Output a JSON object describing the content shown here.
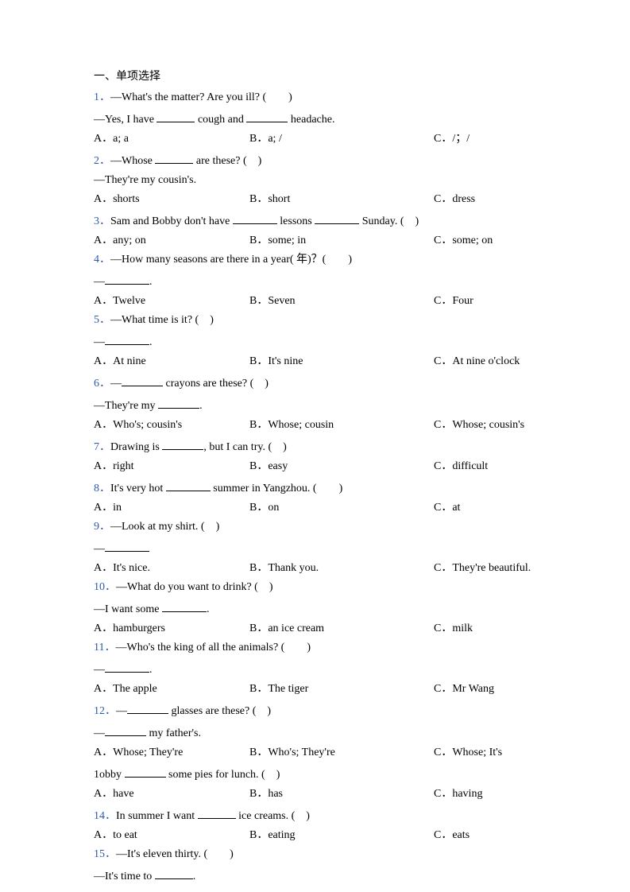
{
  "section_title": "一、单项选择",
  "colors": {
    "qnum": "#2e5aac",
    "text": "#000000",
    "bg": "#ffffff"
  },
  "questions": [
    {
      "num": "1．",
      "lines": [
        [
          {
            "t": "—What's the matter? Are you ill? (　　)"
          }
        ],
        [
          {
            "t": "—Yes, I have "
          },
          {
            "blank": 48
          },
          {
            "t": " cough and "
          },
          {
            "blank": 52
          },
          {
            "t": " headache."
          }
        ]
      ],
      "opts": [
        "A．a; a",
        "B．a; /",
        "C．/；/"
      ]
    },
    {
      "num": "2．",
      "lines": [
        [
          {
            "t": "—Whose "
          },
          {
            "blank": 48
          },
          {
            "t": " are these? (　)"
          }
        ],
        [
          {
            "t": "—They're my cousin's."
          }
        ]
      ],
      "opts": [
        "A．shorts",
        "B．short",
        "C．dress"
      ]
    },
    {
      "num": "3．",
      "lines": [
        [
          {
            "t": "Sam and Bobby don't have "
          },
          {
            "blank": 56
          },
          {
            "t": " lessons "
          },
          {
            "blank": 56
          },
          {
            "t": " Sunday. (　)"
          }
        ]
      ],
      "opts": [
        "A．any; on",
        "B．some; in",
        "C．some; on"
      ]
    },
    {
      "num": "4．",
      "lines": [
        [
          {
            "t": "—How many seasons are there in a year( 年)？(　　)"
          }
        ],
        [
          {
            "t": "—"
          },
          {
            "blank": 56
          },
          {
            "t": "."
          }
        ]
      ],
      "opts": [
        "A．Twelve",
        "B．Seven",
        "C．Four"
      ]
    },
    {
      "num": "5．",
      "lines": [
        [
          {
            "t": "—What time is it? (　)"
          }
        ],
        [
          {
            "t": "—"
          },
          {
            "blank": 56
          },
          {
            "t": "."
          }
        ]
      ],
      "opts": [
        "A．At nine",
        "B．It's nine",
        "C．At nine o'clock"
      ]
    },
    {
      "num": "6．",
      "lines": [
        [
          {
            "t": "—"
          },
          {
            "blank": 52
          },
          {
            "t": " crayons are these? (　)"
          }
        ],
        [
          {
            "t": "—They're my "
          },
          {
            "blank": 52
          },
          {
            "t": "."
          }
        ]
      ],
      "opts": [
        "A．Who's; cousin's",
        "B．Whose; cousin",
        "C．Whose; cousin's"
      ]
    },
    {
      "num": "7．",
      "lines": [
        [
          {
            "t": "Drawing is "
          },
          {
            "blank": 52
          },
          {
            "t": ", but I can try. (　)"
          }
        ]
      ],
      "opts": [
        "A．right",
        "B．easy",
        "C．difficult"
      ]
    },
    {
      "num": "8．",
      "lines": [
        [
          {
            "t": "It's very hot "
          },
          {
            "blank": 56
          },
          {
            "t": " summer in Yangzhou. (　　)"
          }
        ]
      ],
      "opts": [
        "A．in",
        "B．on",
        "C．at"
      ]
    },
    {
      "num": "9．",
      "lines": [
        [
          {
            "t": "—Look at my shirt. (　)"
          }
        ],
        [
          {
            "t": "—"
          },
          {
            "blank": 56
          }
        ]
      ],
      "opts": [
        "A．It's nice.",
        "B．Thank you.",
        "C．They're beautiful."
      ]
    },
    {
      "num": "10．",
      "lines": [
        [
          {
            "t": "—What do you want to drink? (　)"
          }
        ],
        [
          {
            "t": "—I want some "
          },
          {
            "blank": 56
          },
          {
            "t": "."
          }
        ]
      ],
      "opts": [
        "A．hamburgers",
        "B．an ice cream",
        "C．milk"
      ]
    },
    {
      "num": "11．",
      "lines": [
        [
          {
            "t": "—Who's the king of all the animals? (　　)"
          }
        ],
        [
          {
            "t": "—"
          },
          {
            "blank": 56
          },
          {
            "t": "."
          }
        ]
      ],
      "opts": [
        "A．The apple",
        "B．The tiger",
        "C．Mr Wang"
      ]
    },
    {
      "num": "12．",
      "lines": [
        [
          {
            "t": "—"
          },
          {
            "blank": 52
          },
          {
            "t": " glasses are these? (　)"
          }
        ],
        [
          {
            "t": "—"
          },
          {
            "blank": 52
          },
          {
            "t": " my father's."
          }
        ]
      ],
      "opts": [
        "A．Whose; They're",
        "B．Who's; They're",
        "C．Whose; It's"
      ]
    },
    {
      "num": "1",
      "num_plain": true,
      "lines": [
        [
          {
            "t": "obby "
          },
          {
            "blank": 52
          },
          {
            "t": " some pies for lunch. (　)"
          }
        ]
      ],
      "opts": [
        "A．have",
        "B．has",
        "C．having"
      ]
    },
    {
      "num": "14．",
      "lines": [
        [
          {
            "t": "In summer I want "
          },
          {
            "blank": 48
          },
          {
            "t": " ice creams. (　)"
          }
        ]
      ],
      "opts": [
        "A．to eat",
        "B．eating",
        "C．eats"
      ]
    },
    {
      "num": "15．",
      "lines": [
        [
          {
            "t": "—It's eleven thirty. (　　)"
          }
        ],
        [
          {
            "t": "—It's time to "
          },
          {
            "blank": 48
          },
          {
            "t": "."
          }
        ]
      ],
      "opts": null
    }
  ]
}
